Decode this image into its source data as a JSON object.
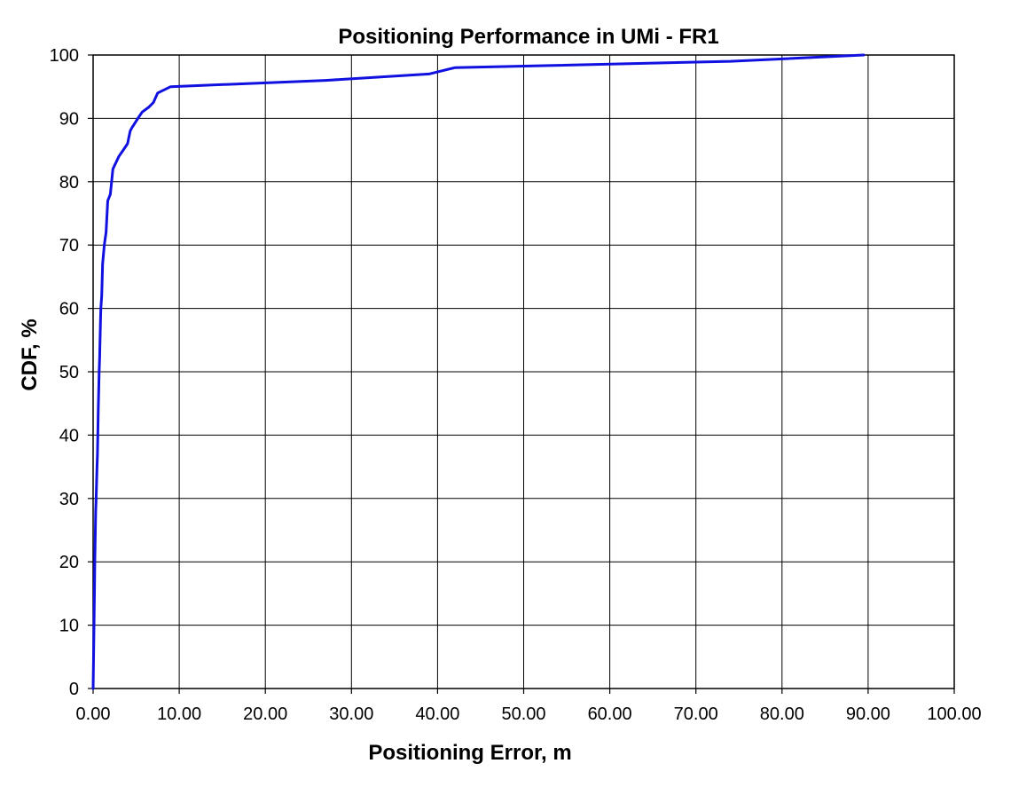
{
  "chart_data": {
    "type": "line",
    "title": "Positioning Performance  in UMi - FR1",
    "xlabel": "Positioning Error, m",
    "ylabel": "CDF, %",
    "xlim": [
      0,
      100
    ],
    "ylim": [
      0,
      100
    ],
    "x_ticks": [
      "0.00",
      "10.00",
      "20.00",
      "30.00",
      "40.00",
      "50.00",
      "60.00",
      "70.00",
      "80.00",
      "90.00",
      "100.00"
    ],
    "y_ticks": [
      "0",
      "10",
      "20",
      "30",
      "40",
      "50",
      "60",
      "70",
      "80",
      "90",
      "100"
    ],
    "grid": true,
    "legend": "none",
    "series": [
      {
        "color": "#1010e0",
        "x": [
          0.0,
          0.1,
          0.15,
          0.2,
          0.3,
          0.35,
          0.45,
          0.5,
          0.55,
          0.6,
          0.65,
          0.7,
          0.75,
          0.8,
          0.85,
          0.9,
          1.0,
          1.1,
          1.3,
          1.5,
          1.7,
          2.0,
          2.3,
          3.0,
          3.5,
          4.0,
          4.3,
          4.5,
          5.2,
          5.7,
          6.5,
          7.0,
          7.5,
          9.0,
          27.0,
          39.0,
          42.0,
          74.0,
          89.5
        ],
        "y": [
          0,
          10,
          15,
          20,
          28,
          30,
          35,
          37,
          40,
          44,
          47,
          50,
          52,
          55,
          58,
          60,
          62,
          67,
          70,
          72,
          77,
          78,
          82,
          84,
          85,
          86,
          88,
          88.5,
          90,
          91,
          91.8,
          92.5,
          94,
          95,
          96,
          97,
          98,
          99,
          100
        ]
      }
    ]
  }
}
